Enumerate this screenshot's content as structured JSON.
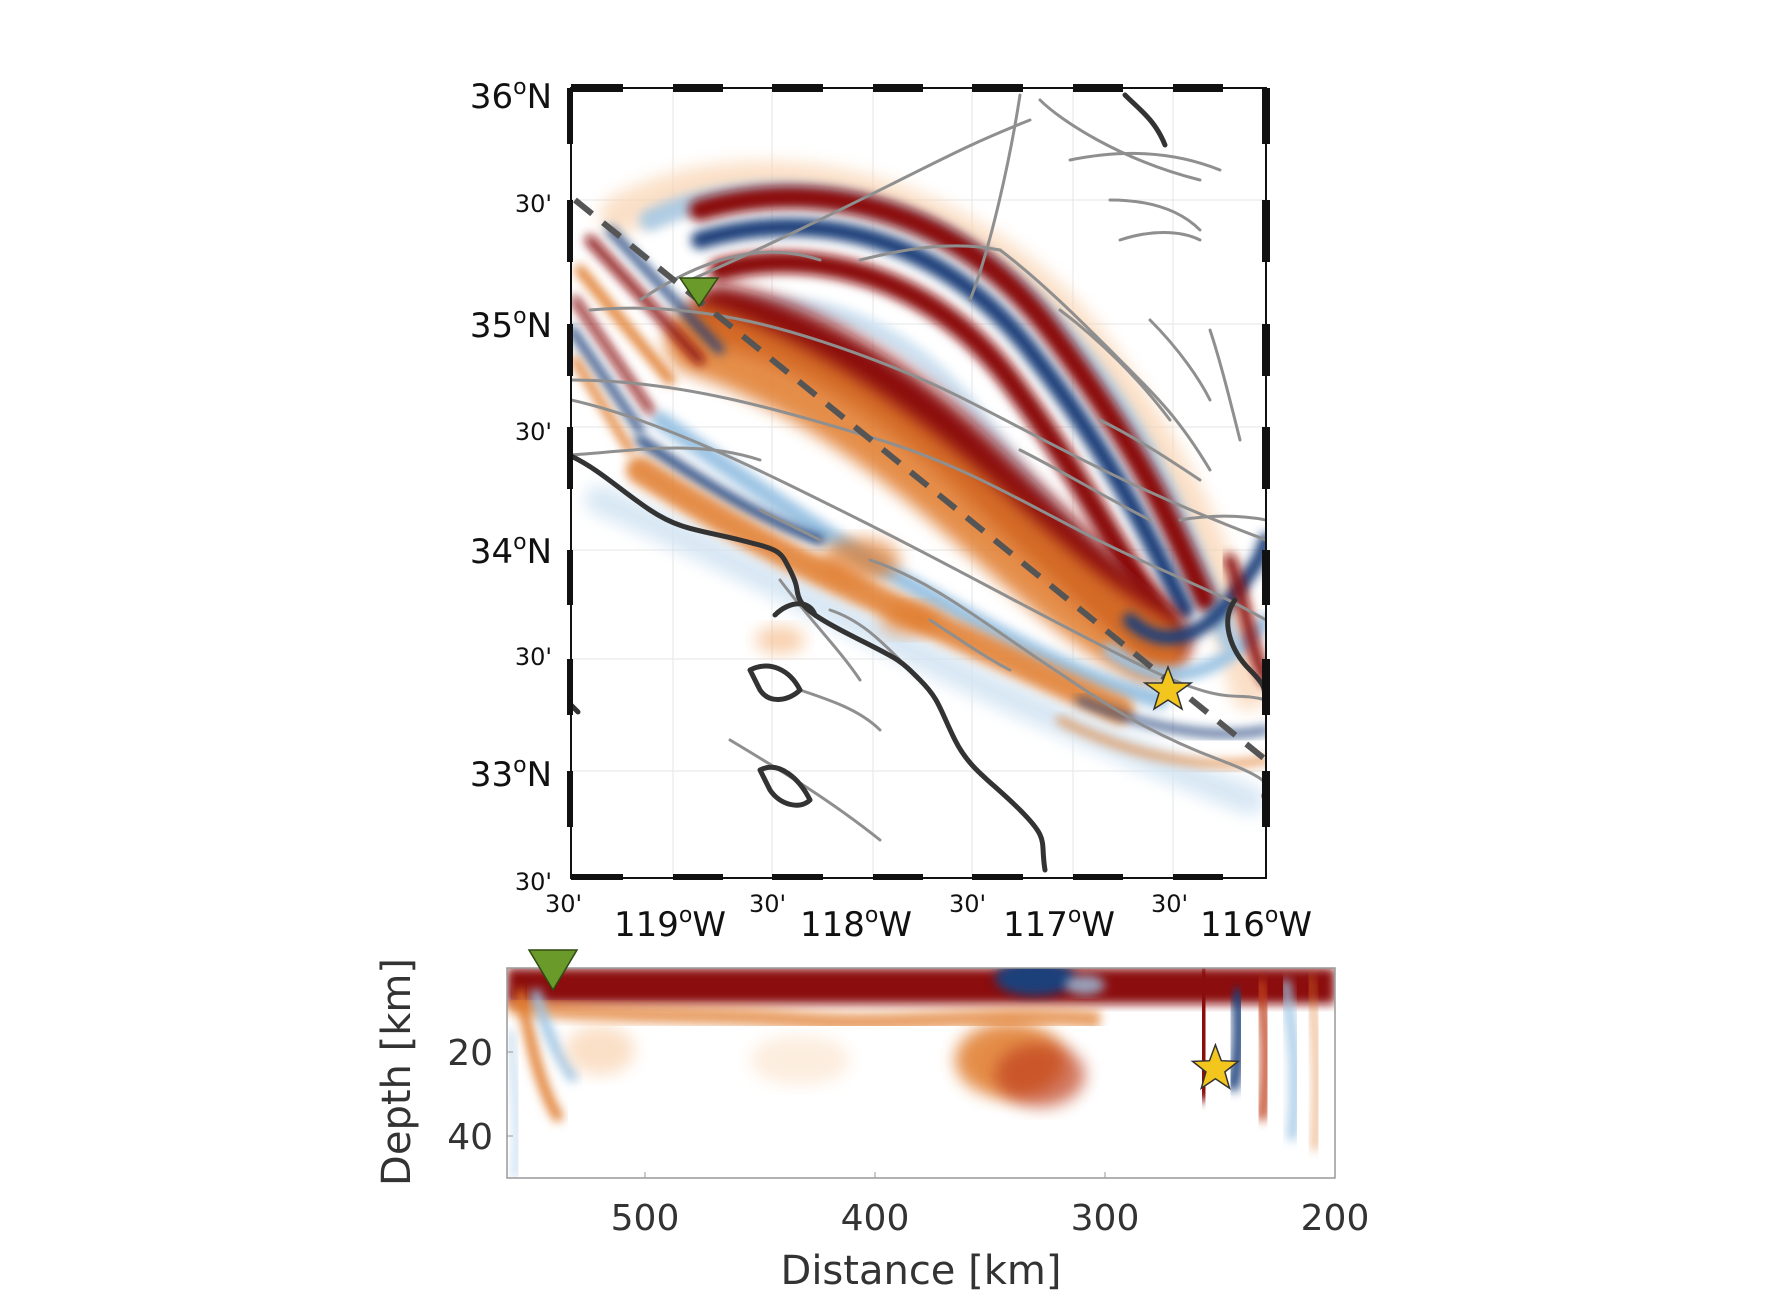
{
  "map": {
    "lat_labels": [
      {
        "deg": "36",
        "sup": "o",
        "hem": "N"
      },
      {
        "deg": "35",
        "sup": "o",
        "hem": "N"
      },
      {
        "deg": "34",
        "sup": "o",
        "hem": "N"
      },
      {
        "deg": "33",
        "sup": "o",
        "hem": "N"
      }
    ],
    "lat_minor_labels": [
      "30'",
      "30'",
      "30'",
      "30'"
    ],
    "lon_labels": [
      {
        "deg": "119",
        "sup": "o",
        "hem": "W"
      },
      {
        "deg": "118",
        "sup": "o",
        "hem": "W"
      },
      {
        "deg": "117",
        "sup": "o",
        "hem": "W"
      },
      {
        "deg": "116",
        "sup": "o",
        "hem": "W"
      }
    ],
    "lon_minor_labels": [
      "30'",
      "30'",
      "30'",
      "30'"
    ],
    "colors": {
      "red": "#8b1010",
      "orange": "#e07a2a",
      "blue": "#1b3f7a",
      "lightblue": "#9cc4e4",
      "fault": "#8f8f8f",
      "coast": "#333333",
      "station": "#6a9a2a",
      "epicenter": "#f2c61c"
    }
  },
  "section": {
    "type": "heatmap",
    "ylabel": "Depth [km]",
    "xlabel": "Distance [km]",
    "x_ticks": [
      "500",
      "400",
      "300",
      "200"
    ],
    "y_ticks": [
      "20",
      "40"
    ],
    "xlim": [
      560,
      200
    ],
    "ylim": [
      0,
      50
    ],
    "station_distance": 540,
    "source": {
      "distance": 252,
      "depth": 24
    }
  }
}
